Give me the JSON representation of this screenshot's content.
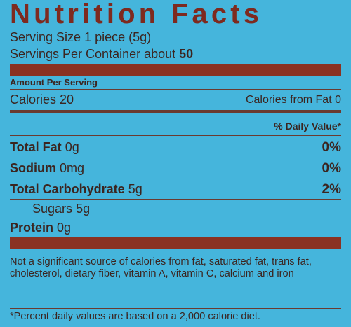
{
  "title": "Nutrition Facts",
  "serving_size": {
    "label": "Serving Size",
    "value": "1 piece (5g)"
  },
  "servings_per_container": {
    "label": "Servings Per Container about",
    "value": "50"
  },
  "amount_per_serving": "Amount Per Serving",
  "calories": {
    "label": "Calories",
    "value": "20"
  },
  "calories_from_fat": {
    "label": "Calories from Fat",
    "value": "0"
  },
  "daily_value_header": "% Daily Value*",
  "nutrients": [
    {
      "name": "Total Fat",
      "amount": "0g",
      "daily_value": "0%"
    },
    {
      "name": "Sodium",
      "amount": "0mg",
      "daily_value": "0%"
    },
    {
      "name": "Total Carbohydrate",
      "amount": "5g",
      "daily_value": "2%"
    },
    {
      "name": "Sugars",
      "amount": "5g"
    },
    {
      "name": "Protein",
      "amount": "0g"
    }
  ],
  "note": "Not a significant source of calories from fat, saturated fat, trans fat, cholesterol, dietary fiber, vitamin A, vitamin C, calcium and iron",
  "footnote": "*Percent daily values are based on a 2,000 calorie diet."
}
